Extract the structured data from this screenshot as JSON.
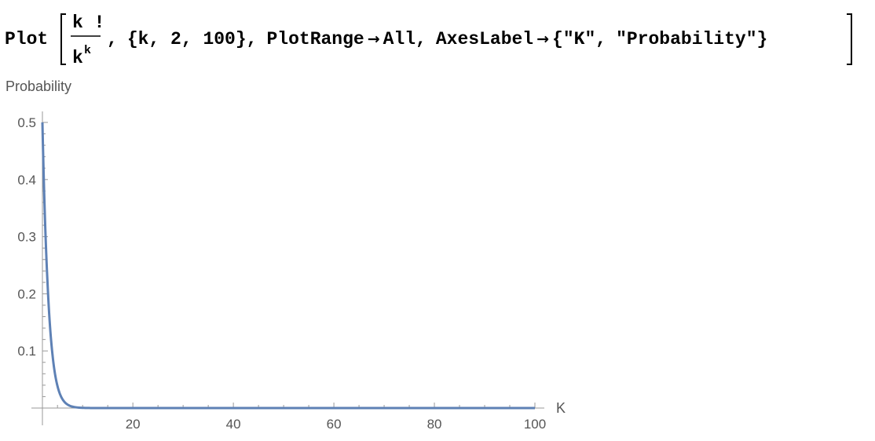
{
  "input": {
    "fn": "Plot",
    "numerator": "k !",
    "denominator_base": "k",
    "denominator_exp": "k",
    "sep1": ",",
    "iter_open": "{",
    "iter_var": "k",
    "iter_rest": ", 2, 100}",
    "sep2": ",",
    "opt1_name": "PlotRange",
    "arrow": "→",
    "opt1_value": "All",
    "sep3": ",",
    "opt2_name": "AxesLabel",
    "opt2_open": "{",
    "label1": "\"K\"",
    "sep4": ",",
    "label2_quote_open": "\"",
    "label2_text": "Probability",
    "label2_quote_close": "\"",
    "opt2_close": "}"
  },
  "chart_data": {
    "type": "line",
    "xlabel": "K",
    "ylabel": "Probability",
    "xlim": [
      2,
      100
    ],
    "ylim": [
      0,
      0.5
    ],
    "x_ticks": [
      20,
      40,
      60,
      80,
      100
    ],
    "y_ticks": [
      0.1,
      0.2,
      0.3,
      0.4,
      0.5
    ],
    "x_tick_labels": [
      "20",
      "40",
      "60",
      "80",
      "100"
    ],
    "y_tick_labels": [
      "0.1",
      "0.2",
      "0.3",
      "0.4",
      "0.5"
    ],
    "series": [
      {
        "color": "#5e81b5",
        "x": [
          2,
          3,
          4,
          5,
          6,
          7,
          8,
          9,
          10,
          11,
          12,
          15,
          20,
          30,
          40,
          50,
          60,
          70,
          80,
          90,
          100
        ],
        "y": [
          0.5,
          0.2222,
          0.0938,
          0.0384,
          0.0154,
          0.0061,
          0.0024,
          0.00094,
          0.00036,
          0.00014,
          5.4e-05,
          3e-06,
          2.3e-08,
          0.0,
          0.0,
          0.0,
          0.0,
          0.0,
          0.0,
          0.0,
          0.0
        ]
      }
    ]
  }
}
